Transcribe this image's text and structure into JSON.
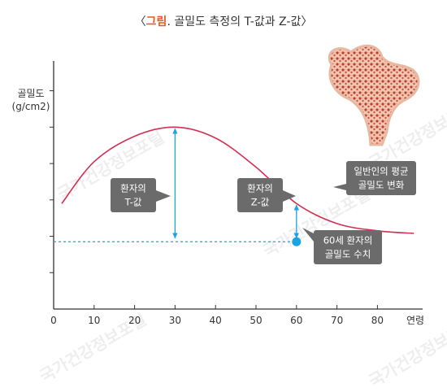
{
  "title": {
    "open_bracket": "〈",
    "accent": "그림",
    "rest": ". 골밀도 측정의 T-값과 Z-값",
    "close_bracket": "〉"
  },
  "watermark_text": "국가건강정보포털",
  "colors": {
    "curve": "#d42e52",
    "arrow": "#1aa3e0",
    "dashed": "#1aa3e0",
    "callout_bg": "#6b6b6b",
    "axis": "#333333",
    "title_accent": "#e25a1c"
  },
  "chart_data": {
    "type": "line",
    "title": "골밀도 측정의 T-값과 Z-값",
    "xlabel": "연령",
    "ylabel": "골밀도\n(g/cm2)",
    "xlim": [
      0,
      87
    ],
    "ylim": [
      0,
      6
    ],
    "x_ticks": [
      "0",
      "10",
      "20",
      "30",
      "40",
      "50",
      "60",
      "70",
      "80"
    ],
    "y_ticks_count": 6,
    "series": [
      {
        "name": "일반인의 평균 골밀도 변화",
        "x": [
          2,
          10,
          20,
          30,
          40,
          50,
          60,
          70,
          80,
          89
        ],
        "y": [
          2.9,
          4.05,
          4.75,
          5.0,
          4.7,
          3.9,
          2.9,
          2.35,
          2.15,
          2.08
        ]
      }
    ],
    "reference_point": {
      "x": 60,
      "y": 1.85,
      "label": "60세 환자의\n골밀도 수치"
    },
    "annotations": [
      {
        "label": "환자의\nT-값",
        "x": 30,
        "from_y": 1.95,
        "to_y": 5.0
      },
      {
        "label": "환자의\nZ-값",
        "x": 60,
        "from_y": 1.95,
        "to_y": 2.9
      },
      {
        "label": "일반인의 평균\n골밀도 변화"
      }
    ]
  }
}
